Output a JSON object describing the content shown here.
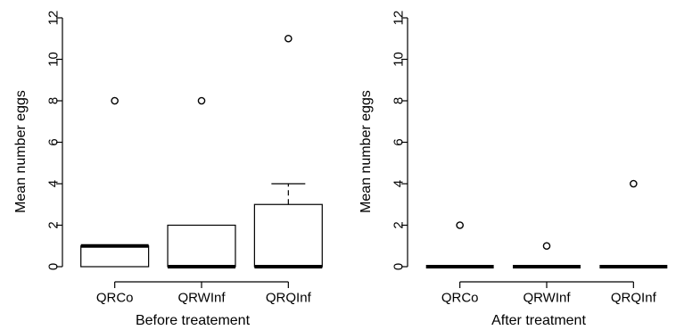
{
  "chart_data": [
    {
      "type": "boxplot",
      "xlabel": "Before treatement",
      "ylabel": "Mean number eggs",
      "ylim": [
        0,
        12
      ],
      "yticks": [
        0,
        2,
        4,
        6,
        8,
        10,
        12
      ],
      "categories": [
        "QRCo",
        "QRWInf",
        "QRQInf"
      ],
      "boxes": [
        {
          "category": "QRCo",
          "whisker_low": 0,
          "q1": 0,
          "median": 1,
          "q3": 1,
          "whisker_high": 1,
          "outliers": [
            8
          ]
        },
        {
          "category": "QRWInf",
          "whisker_low": 0,
          "q1": 0,
          "median": 0,
          "q3": 2,
          "whisker_high": 2,
          "outliers": [
            8
          ]
        },
        {
          "category": "QRQInf",
          "whisker_low": 0,
          "q1": 0,
          "median": 0,
          "q3": 3,
          "whisker_high": 4,
          "outliers": [
            11
          ]
        }
      ]
    },
    {
      "type": "boxplot",
      "xlabel": "After treatment",
      "ylabel": "Mean number eggs",
      "ylim": [
        0,
        12
      ],
      "yticks": [
        0,
        2,
        4,
        6,
        8,
        10,
        12
      ],
      "categories": [
        "QRCo",
        "QRWInf",
        "QRQInf"
      ],
      "boxes": [
        {
          "category": "QRCo",
          "whisker_low": 0,
          "q1": 0,
          "median": 0,
          "q3": 0,
          "whisker_high": 0,
          "outliers": [
            2
          ]
        },
        {
          "category": "QRWInf",
          "whisker_low": 0,
          "q1": 0,
          "median": 0,
          "q3": 0,
          "whisker_high": 0,
          "outliers": [
            1
          ]
        },
        {
          "category": "QRQInf",
          "whisker_low": 0,
          "q1": 0,
          "median": 0,
          "q3": 0,
          "whisker_high": 0,
          "outliers": [
            4
          ]
        }
      ]
    }
  ]
}
